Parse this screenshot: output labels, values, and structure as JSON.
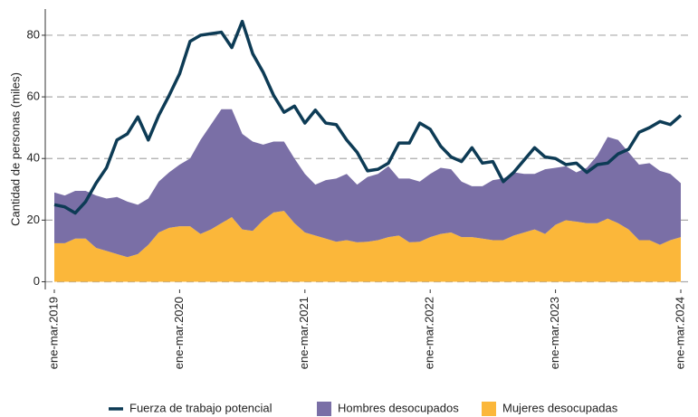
{
  "chart_data": {
    "type": "line",
    "ylabel": "Cantidad de personas (miles)",
    "categories": [
      "ene-mar.2019",
      null,
      null,
      null,
      null,
      null,
      null,
      null,
      null,
      null,
      null,
      null,
      "ene-mar.2020",
      null,
      null,
      null,
      null,
      null,
      null,
      null,
      null,
      null,
      null,
      null,
      "ene-mar.2021",
      null,
      null,
      null,
      null,
      null,
      null,
      null,
      null,
      null,
      null,
      null,
      "ene-mar.2022",
      null,
      null,
      null,
      null,
      null,
      null,
      null,
      null,
      null,
      null,
      null,
      "ene-mar.2023",
      null,
      null,
      null,
      null,
      null,
      null,
      null,
      null,
      null,
      null,
      null,
      "ene-mar.2024"
    ],
    "ylim": [
      -2.5,
      88.5
    ],
    "yticks": [
      0,
      20,
      40,
      60,
      80
    ],
    "grid": true,
    "stacked_areas": true,
    "legend": "bottom",
    "series": [
      {
        "name": "Fuerza de trabajo potencial",
        "type": "line",
        "color": "#0d3b55",
        "values": [
          25,
          24.3,
          22.3,
          26,
          32,
          37,
          46,
          48,
          53.5,
          46,
          54,
          60.5,
          67.5,
          78,
          80,
          80.5,
          81,
          76,
          84.5,
          74,
          68,
          60.5,
          55,
          57,
          51.5,
          55.7,
          51.5,
          51,
          46,
          42,
          36,
          36.5,
          38.5,
          45,
          45,
          51.5,
          49.5,
          44,
          40.5,
          39,
          43.5,
          38.5,
          39,
          32.5,
          35.5,
          39.5,
          43.5,
          40.5,
          40,
          38,
          38.5,
          35.5,
          38,
          38.5,
          41.5,
          43,
          48.5,
          50,
          52,
          51,
          54
        ]
      },
      {
        "name": "Hombres desocupados",
        "type": "area",
        "color": "#7a6fa6",
        "values": [
          16.5,
          15.5,
          15.5,
          15.5,
          17,
          17,
          18.5,
          18,
          16,
          15,
          16.5,
          18,
          20,
          22,
          30.5,
          34,
          37,
          35,
          31,
          29,
          24.5,
          23,
          22.5,
          21,
          19,
          16.5,
          19,
          20.5,
          21.5,
          18.7,
          21,
          21.5,
          23,
          18.5,
          20.7,
          19.5,
          20.5,
          21.5,
          20.5,
          18,
          16.5,
          17,
          19.5,
          20,
          20.5,
          19,
          18,
          21,
          18.5,
          17.5,
          16,
          18,
          22,
          26.5,
          27,
          25,
          24.5,
          25,
          24,
          21.5,
          17.5
        ]
      },
      {
        "name": "Mujeres desocupadas",
        "type": "area",
        "color": "#fbb73a",
        "values": [
          12.5,
          12.5,
          14,
          14,
          11,
          10,
          9,
          8,
          9,
          12,
          16,
          17.5,
          18,
          18,
          15.5,
          17,
          19,
          21,
          17,
          16.5,
          20,
          22.5,
          23,
          19,
          16,
          15,
          14,
          13,
          13.5,
          12.8,
          13,
          13.5,
          14.5,
          15,
          12.8,
          13,
          14.5,
          15.5,
          16,
          14.5,
          14.5,
          14,
          13.5,
          13.5,
          15,
          16,
          17,
          15.5,
          18.5,
          20,
          19.5,
          19,
          19,
          20.5,
          19,
          17,
          13.5,
          13.5,
          12,
          13.5,
          14.5
        ]
      }
    ]
  }
}
